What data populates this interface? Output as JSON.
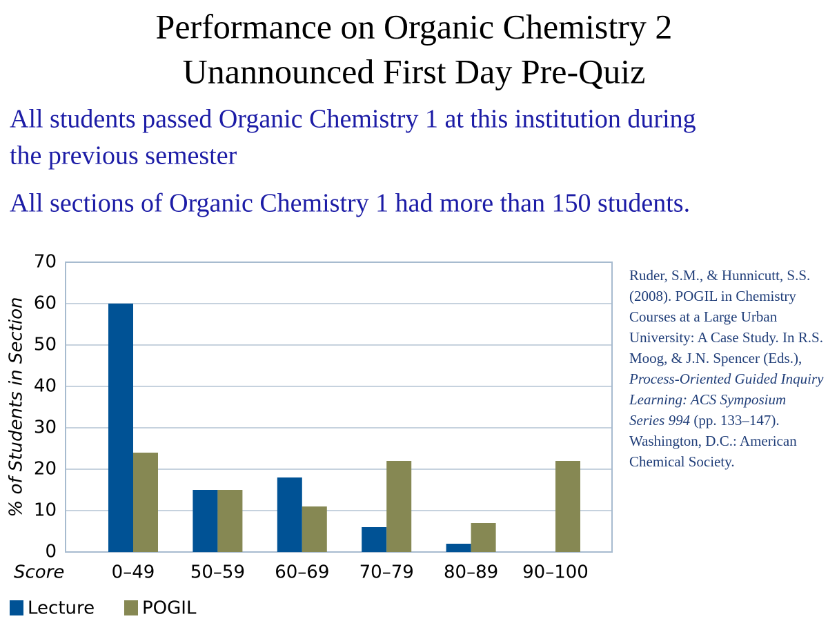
{
  "chart_data": {
    "type": "bar",
    "title": [
      "Performance on Organic Chemistry 2",
      "Unannounced First Day Pre-Quiz"
    ],
    "notes": [
      "All students passed Organic Chemistry 1 at this institution during",
      "the previous semester",
      "All sections of Organic Chemistry 1 had more than 150 students."
    ],
    "x_label": "Score",
    "y_label": "% of Students in Section",
    "categories": [
      "0–49",
      "50–59",
      "60–69",
      "70–79",
      "80–89",
      "90–100"
    ],
    "series": [
      {
        "name": "Lecture",
        "color": "#005295",
        "values": [
          60,
          15,
          18,
          6,
          2,
          0
        ]
      },
      {
        "name": "POGIL",
        "color": "#868853",
        "values": [
          24,
          15,
          11,
          22,
          7,
          22
        ]
      }
    ],
    "ylim": [
      0,
      70
    ],
    "yticks": [
      0,
      10,
      20,
      30,
      40,
      50,
      60,
      70
    ],
    "grid": true,
    "legend": "bottom-left",
    "citation": [
      {
        "text": "Ruder, S.M., & Hunnicutt, S.S. (2008). POGIL in Chemistry Courses at a Large Urban University: A Case Study. In R.S. Moog, & J.N. Spencer (Eds.), ",
        "italic": false
      },
      {
        "text": "Process-Oriented Guided Inquiry Learning: ACS Symposium Series 994",
        "italic": true
      },
      {
        "text": " (pp. 133–147). Washington, D.C.: American Chemical Society.",
        "italic": false
      }
    ]
  }
}
